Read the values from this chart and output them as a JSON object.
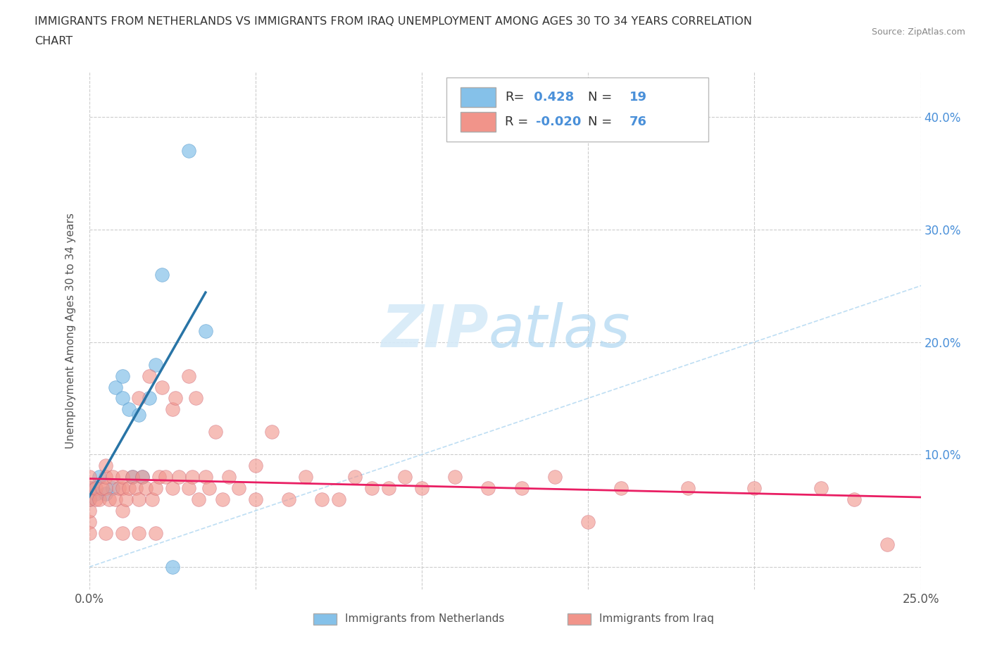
{
  "title_line1": "IMMIGRANTS FROM NETHERLANDS VS IMMIGRANTS FROM IRAQ UNEMPLOYMENT AMONG AGES 30 TO 34 YEARS CORRELATION",
  "title_line2": "CHART",
  "source": "Source: ZipAtlas.com",
  "ylabel": "Unemployment Among Ages 30 to 34 years",
  "xlim": [
    0.0,
    0.25
  ],
  "ylim": [
    -0.02,
    0.44
  ],
  "xticks": [
    0.0,
    0.05,
    0.1,
    0.15,
    0.2,
    0.25
  ],
  "yticks": [
    0.0,
    0.1,
    0.2,
    0.3,
    0.4
  ],
  "xtick_labels": [
    "0.0%",
    "",
    "",
    "",
    "",
    "25.0%"
  ],
  "ytick_labels_right": [
    "",
    "10.0%",
    "20.0%",
    "30.0%",
    "40.0%"
  ],
  "netherlands_color": "#85C1E9",
  "iraq_color": "#F1948A",
  "netherlands_R": 0.428,
  "netherlands_N": 19,
  "iraq_R": -0.02,
  "iraq_N": 76,
  "netherlands_x": [
    0.0,
    0.001,
    0.002,
    0.003,
    0.005,
    0.007,
    0.008,
    0.01,
    0.01,
    0.012,
    0.013,
    0.015,
    0.016,
    0.018,
    0.02,
    0.022,
    0.025,
    0.03,
    0.035
  ],
  "netherlands_y": [
    0.06,
    0.07,
    0.065,
    0.08,
    0.065,
    0.07,
    0.16,
    0.15,
    0.17,
    0.14,
    0.08,
    0.135,
    0.08,
    0.15,
    0.18,
    0.26,
    0.0,
    0.37,
    0.21
  ],
  "iraq_x": [
    0.0,
    0.0,
    0.0,
    0.0,
    0.0,
    0.002,
    0.002,
    0.003,
    0.004,
    0.005,
    0.005,
    0.005,
    0.006,
    0.007,
    0.008,
    0.009,
    0.01,
    0.01,
    0.01,
    0.011,
    0.012,
    0.013,
    0.014,
    0.015,
    0.015,
    0.016,
    0.017,
    0.018,
    0.019,
    0.02,
    0.021,
    0.022,
    0.023,
    0.025,
    0.025,
    0.026,
    0.027,
    0.03,
    0.03,
    0.031,
    0.032,
    0.033,
    0.035,
    0.036,
    0.038,
    0.04,
    0.042,
    0.045,
    0.05,
    0.05,
    0.055,
    0.06,
    0.065,
    0.07,
    0.075,
    0.08,
    0.085,
    0.09,
    0.095,
    0.1,
    0.11,
    0.12,
    0.13,
    0.14,
    0.15,
    0.16,
    0.18,
    0.2,
    0.22,
    0.23,
    0.0,
    0.005,
    0.01,
    0.015,
    0.02,
    0.24
  ],
  "iraq_y": [
    0.04,
    0.05,
    0.06,
    0.07,
    0.08,
    0.06,
    0.07,
    0.06,
    0.07,
    0.07,
    0.08,
    0.09,
    0.06,
    0.08,
    0.06,
    0.07,
    0.05,
    0.07,
    0.08,
    0.06,
    0.07,
    0.08,
    0.07,
    0.06,
    0.15,
    0.08,
    0.07,
    0.17,
    0.06,
    0.07,
    0.08,
    0.16,
    0.08,
    0.14,
    0.07,
    0.15,
    0.08,
    0.07,
    0.17,
    0.08,
    0.15,
    0.06,
    0.08,
    0.07,
    0.12,
    0.06,
    0.08,
    0.07,
    0.06,
    0.09,
    0.12,
    0.06,
    0.08,
    0.06,
    0.06,
    0.08,
    0.07,
    0.07,
    0.08,
    0.07,
    0.08,
    0.07,
    0.07,
    0.08,
    0.04,
    0.07,
    0.07,
    0.07,
    0.07,
    0.06,
    0.03,
    0.03,
    0.03,
    0.03,
    0.03,
    0.02
  ],
  "background_color": "#ffffff",
  "grid_color": "#cccccc",
  "trendline_blue_color": "#2874A6",
  "trendline_pink_color": "#E91E63",
  "diag_color": "#AED6F1"
}
